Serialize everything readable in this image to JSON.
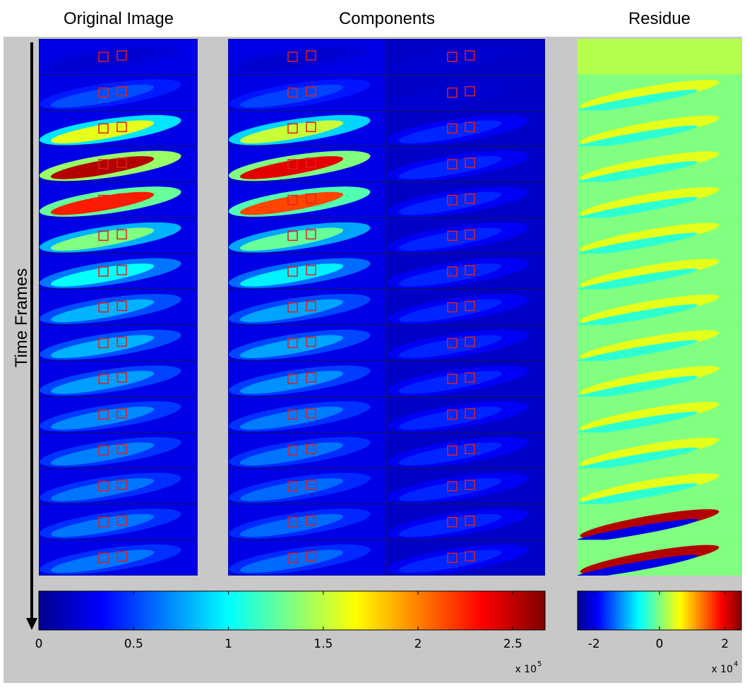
{
  "titles": {
    "original": "Original Image",
    "components": "Components",
    "residue": "Residue"
  },
  "axis_label": "Time Frames",
  "colorbars": [
    {
      "lim": [
        0,
        2.67
      ],
      "ticks": [
        0,
        0.5,
        1,
        1.5,
        2,
        2.5
      ],
      "multiplier": "x 10",
      "exponent": "5"
    },
    {
      "lim": [
        -2.5,
        2.5
      ],
      "ticks": [
        -2,
        0,
        2
      ],
      "multiplier": "x 10",
      "exponent": "4"
    }
  ]
}
